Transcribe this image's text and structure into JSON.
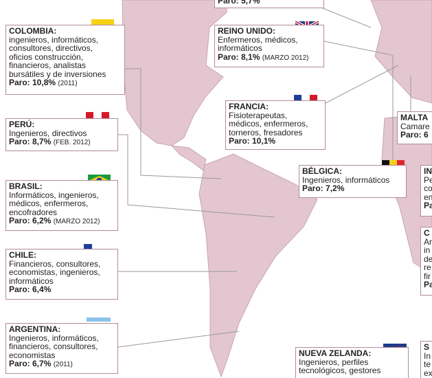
{
  "boxes": [
    {
      "title": "",
      "lines": [],
      "rate": "Paro: 5,7%",
      "note": ""
    },
    {
      "title": "COLOMBIA:",
      "lines": [
        "ingenieros, informáticos,",
        "consultores, directivos,",
        "oficios construcción,",
        "financieros, analistas",
        "bursátiles y de inversiones"
      ],
      "rate": "Paro: 10,8%",
      "note": "(2011)"
    },
    {
      "title": "REINO UNIDO:",
      "lines": [
        "Enfermeros, médicos,",
        "informáticos"
      ],
      "rate": "Paro: 8,1%",
      "note": "(MARZO 2012)"
    },
    {
      "title": "PERÚ:",
      "lines": [
        "Ingenieros, directivos"
      ],
      "rate": "Paro: 8,7%",
      "note": "(FEB. 2012)"
    },
    {
      "title": "FRANCIA:",
      "lines": [
        "Fisioterapeutas,",
        "médicos, enfermeros,",
        "torneros, fresadores"
      ],
      "rate": "Paro: 10,1%",
      "note": ""
    },
    {
      "title": "MALTA",
      "lines": [
        "Camare"
      ],
      "rate": "Paro: 6",
      "note": ""
    },
    {
      "title": "BÉLGICA:",
      "lines": [
        "Ingenieros, informáticos"
      ],
      "rate": "Paro: 7,2%",
      "note": ""
    },
    {
      "title": "IN",
      "lines": [
        "Pe",
        "co",
        "en"
      ],
      "rate": "Pa",
      "note": ""
    },
    {
      "title": "BRASIL:",
      "lines": [
        "Informáticos, ingenieros,",
        "médicos, enfermeros,",
        "encofradores"
      ],
      "rate": "Paro: 6,2%",
      "note": "(MARZO 2012)"
    },
    {
      "title": "C",
      "lines": [
        "Ar",
        "in",
        "de",
        "re",
        "fir"
      ],
      "rate": "Pa",
      "note": ""
    },
    {
      "title": "CHILE:",
      "lines": [
        "Financieros, consultores,",
        "economistas, ingenieros,",
        "informáticos"
      ],
      "rate": "Paro: 6,4%",
      "note": ""
    },
    {
      "title": "ARGENTINA:",
      "lines": [
        "Ingenieros, informáticos,",
        "financieros, consultores,",
        "economistas"
      ],
      "rate": "Paro: 6,7%",
      "note": "(2011)"
    },
    {
      "title": "NUEVA ZELANDA:",
      "lines": [
        "Ingenieros, perfiles",
        "tecnológicos, gestores"
      ],
      "rate": "",
      "note": ""
    },
    {
      "title": "S",
      "lines": [
        "In",
        "te",
        "ex"
      ],
      "rate": "",
      "note": ""
    }
  ]
}
